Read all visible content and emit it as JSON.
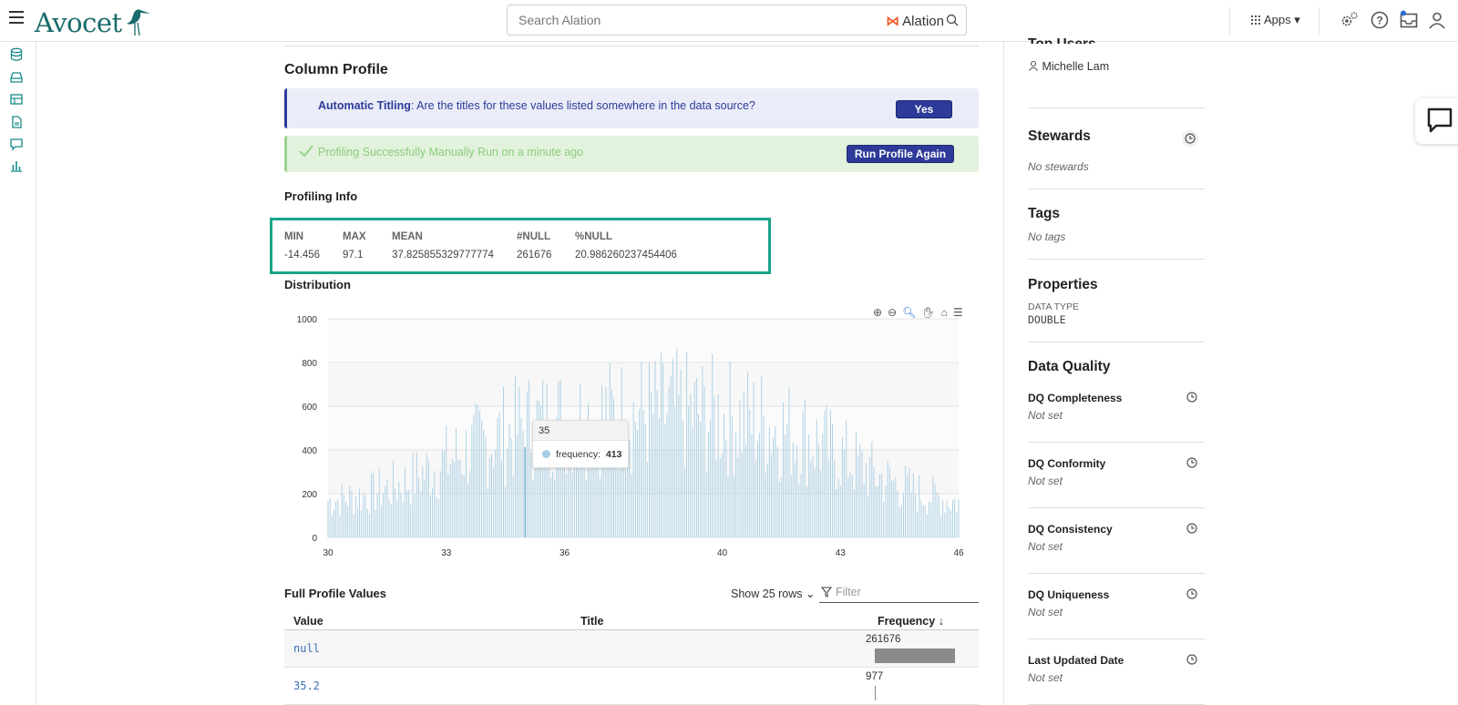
{
  "header": {
    "logo_text": "Avocet",
    "search_placeholder": "Search Alation",
    "search_brand": "Alation",
    "apps_label": "Apps"
  },
  "column_profile": {
    "title": "Column Profile",
    "auto_titling_label": "Automatic Titling",
    "auto_titling_question": ": Are the titles for these values listed somewhere in the data source?",
    "yes_button": "Yes",
    "profiling_status": "Profiling Successfully Manually Run on a minute ago",
    "run_again_button": "Run Profile Again"
  },
  "profiling_info": {
    "title": "Profiling Info",
    "columns": [
      {
        "key": "MIN",
        "value": "-14.456"
      },
      {
        "key": "MAX",
        "value": "97.1"
      },
      {
        "key": "MEAN",
        "value": "37.825855329777774"
      },
      {
        "key": "#NULL",
        "value": "261676"
      },
      {
        "key": "%NULL",
        "value": "20.986260237454406"
      }
    ]
  },
  "distribution": {
    "title": "Distribution",
    "tooltip": {
      "x": "35",
      "series": "frequency:",
      "value": "413"
    }
  },
  "chart_data": {
    "type": "bar",
    "series_name": "frequency",
    "color": "#a7cde4",
    "xlim": [
      30,
      46
    ],
    "ylim": [
      0,
      1000
    ],
    "x_ticks": [
      30,
      33,
      36,
      40,
      43,
      46
    ],
    "y_ticks": [
      0,
      200,
      400,
      600,
      800,
      1000
    ],
    "grid": true,
    "bin_step": 0.05,
    "envelope": [
      [
        30.0,
        230
      ],
      [
        31.0,
        270
      ],
      [
        32.0,
        350
      ],
      [
        33.0,
        480
      ],
      [
        34.0,
        600
      ],
      [
        35.0,
        700
      ],
      [
        36.0,
        740
      ],
      [
        37.0,
        760
      ],
      [
        38.0,
        780
      ],
      [
        39.0,
        790
      ],
      [
        40.0,
        760
      ],
      [
        41.0,
        720
      ],
      [
        42.0,
        650
      ],
      [
        43.0,
        520
      ],
      [
        44.0,
        380
      ],
      [
        45.0,
        280
      ],
      [
        46.0,
        220
      ]
    ],
    "highlight": {
      "x": 35,
      "frequency": 413
    }
  },
  "full_profile": {
    "title": "Full Profile Values",
    "show_rows": "Show 25 rows",
    "filter_placeholder": "Filter",
    "headers": [
      "Value",
      "Title",
      "Frequency"
    ],
    "rows": [
      {
        "value": "null",
        "frequency": "261676",
        "fraction": 1.0
      },
      {
        "value": "35.2",
        "frequency": "977",
        "fraction": 0.0037
      }
    ]
  },
  "sidebar": {
    "top_users_partial": "Top Users",
    "top_user": "Michelle Lam",
    "stewards_title": "Stewards",
    "stewards_value": "No stewards",
    "tags_title": "Tags",
    "tags_value": "No tags",
    "properties_title": "Properties",
    "data_type_label": "DATA TYPE",
    "data_type_value": "DOUBLE",
    "dq_title": "Data Quality",
    "dq_items": [
      {
        "label": "DQ Completeness",
        "value": "Not set"
      },
      {
        "label": "DQ Conformity",
        "value": "Not set"
      },
      {
        "label": "DQ Consistency",
        "value": "Not set"
      },
      {
        "label": "DQ Uniqueness",
        "value": "Not set"
      },
      {
        "label": "Last Updated Date",
        "value": "Not set"
      }
    ]
  }
}
